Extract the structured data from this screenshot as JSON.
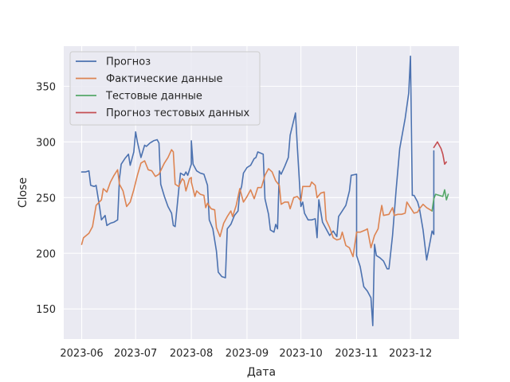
{
  "chart_data": {
    "type": "line",
    "title": "",
    "xlabel": "Дата",
    "ylabel": "Close",
    "xlim": [
      "2023-05-22",
      "2023-12-28"
    ],
    "ylim": [
      123,
      386
    ],
    "x_ticks": [
      "2023-06-01",
      "2023-07-01",
      "2023-08-01",
      "2023-09-01",
      "2023-10-01",
      "2023-11-01",
      "2023-12-01"
    ],
    "x_tick_labels": [
      "2023-06",
      "2023-07",
      "2023-08",
      "2023-09",
      "2023-10",
      "2023-11",
      "2023-12"
    ],
    "y_ticks": [
      150,
      200,
      250,
      300,
      350
    ],
    "y_tick_labels": [
      "150",
      "200",
      "250",
      "300",
      "350"
    ],
    "grid": true,
    "legend": "top-left",
    "colors": {
      "background": "#eaeaf2",
      "grid": "#ffffff",
      "forecast": "#4c72b0",
      "actual": "#dd8452",
      "test": "#55a868",
      "test_forecast": "#c44e52"
    },
    "series": [
      {
        "name": "Прогноз",
        "color": "#4c72b0",
        "points": [
          [
            "2023-06-01",
            273
          ],
          [
            "2023-06-03",
            273
          ],
          [
            "2023-06-05",
            274
          ],
          [
            "2023-06-06",
            261
          ],
          [
            "2023-06-08",
            260
          ],
          [
            "2023-06-09",
            261
          ],
          [
            "2023-06-11",
            241
          ],
          [
            "2023-06-12",
            230
          ],
          [
            "2023-06-14",
            234
          ],
          [
            "2023-06-15",
            225
          ],
          [
            "2023-06-17",
            227
          ],
          [
            "2023-06-19",
            228
          ],
          [
            "2023-06-21",
            230
          ],
          [
            "2023-06-22",
            267
          ],
          [
            "2023-06-23",
            280
          ],
          [
            "2023-06-25",
            285
          ],
          [
            "2023-06-27",
            289
          ],
          [
            "2023-06-28",
            279
          ],
          [
            "2023-06-30",
            291
          ],
          [
            "2023-07-01",
            309
          ],
          [
            "2023-07-02",
            300
          ],
          [
            "2023-07-04",
            286
          ],
          [
            "2023-07-06",
            297
          ],
          [
            "2023-07-07",
            296
          ],
          [
            "2023-07-09",
            299
          ],
          [
            "2023-07-11",
            301
          ],
          [
            "2023-07-13",
            302
          ],
          [
            "2023-07-14",
            299
          ],
          [
            "2023-07-15",
            262
          ],
          [
            "2023-07-17",
            251
          ],
          [
            "2023-07-19",
            242
          ],
          [
            "2023-07-21",
            236
          ],
          [
            "2023-07-22",
            225
          ],
          [
            "2023-07-23",
            224
          ],
          [
            "2023-07-25",
            257
          ],
          [
            "2023-07-26",
            272
          ],
          [
            "2023-07-28",
            270
          ],
          [
            "2023-07-29",
            273
          ],
          [
            "2023-07-30",
            270
          ],
          [
            "2023-08-01",
            280
          ],
          [
            "2023-08-01",
            301
          ],
          [
            "2023-08-02",
            280
          ],
          [
            "2023-08-04",
            274
          ],
          [
            "2023-08-06",
            272
          ],
          [
            "2023-08-08",
            271
          ],
          [
            "2023-08-10",
            261
          ],
          [
            "2023-08-11",
            230
          ],
          [
            "2023-08-13",
            222
          ],
          [
            "2023-08-15",
            202
          ],
          [
            "2023-08-16",
            183
          ],
          [
            "2023-08-18",
            179
          ],
          [
            "2023-08-20",
            178
          ],
          [
            "2023-08-21",
            222
          ],
          [
            "2023-08-23",
            226
          ],
          [
            "2023-08-25",
            234
          ],
          [
            "2023-08-27",
            238
          ],
          [
            "2023-08-28",
            255
          ],
          [
            "2023-08-29",
            260
          ],
          [
            "2023-08-30",
            272
          ],
          [
            "2023-09-01",
            277
          ],
          [
            "2023-09-03",
            279
          ],
          [
            "2023-09-05",
            285
          ],
          [
            "2023-09-06",
            286
          ],
          [
            "2023-09-07",
            291
          ],
          [
            "2023-09-10",
            289
          ],
          [
            "2023-09-11",
            249
          ],
          [
            "2023-09-13",
            235
          ],
          [
            "2023-09-14",
            221
          ],
          [
            "2023-09-16",
            219
          ],
          [
            "2023-09-17",
            226
          ],
          [
            "2023-09-18",
            222
          ],
          [
            "2023-09-19",
            274
          ],
          [
            "2023-09-20",
            271
          ],
          [
            "2023-09-22",
            278
          ],
          [
            "2023-09-24",
            286
          ],
          [
            "2023-09-25",
            306
          ],
          [
            "2023-09-28",
            326
          ],
          [
            "2023-09-29",
            296
          ],
          [
            "2023-10-01",
            242
          ],
          [
            "2023-10-02",
            246
          ],
          [
            "2023-10-03",
            236
          ],
          [
            "2023-10-05",
            230
          ],
          [
            "2023-10-07",
            230
          ],
          [
            "2023-10-09",
            231
          ],
          [
            "2023-10-10",
            214
          ],
          [
            "2023-10-11",
            248
          ],
          [
            "2023-10-13",
            228
          ],
          [
            "2023-10-15",
            222
          ],
          [
            "2023-10-17",
            216
          ],
          [
            "2023-10-19",
            220
          ],
          [
            "2023-10-21",
            215
          ],
          [
            "2023-10-22",
            233
          ],
          [
            "2023-10-24",
            238
          ],
          [
            "2023-10-26",
            243
          ],
          [
            "2023-10-28",
            256
          ],
          [
            "2023-10-29",
            270
          ],
          [
            "2023-11-01",
            271
          ],
          [
            "2023-11-01",
            198
          ],
          [
            "2023-11-03",
            188
          ],
          [
            "2023-11-05",
            170
          ],
          [
            "2023-11-07",
            166
          ],
          [
            "2023-11-09",
            160
          ],
          [
            "2023-11-10",
            135
          ],
          [
            "2023-11-11",
            208
          ],
          [
            "2023-11-12",
            198
          ],
          [
            "2023-11-14",
            196
          ],
          [
            "2023-11-16",
            193
          ],
          [
            "2023-11-18",
            186
          ],
          [
            "2023-11-19",
            186
          ],
          [
            "2023-11-21",
            216
          ],
          [
            "2023-11-23",
            257
          ],
          [
            "2023-11-25",
            294
          ],
          [
            "2023-11-28",
            321
          ],
          [
            "2023-11-30",
            344
          ],
          [
            "2023-12-01",
            377
          ],
          [
            "2023-12-02",
            252
          ],
          [
            "2023-12-03",
            252
          ],
          [
            "2023-12-05",
            246
          ],
          [
            "2023-12-06",
            240
          ],
          [
            "2023-12-08",
            221
          ],
          [
            "2023-12-10",
            194
          ],
          [
            "2023-12-12",
            211
          ],
          [
            "2023-12-13",
            220
          ],
          [
            "2023-12-14",
            217
          ],
          [
            "2023-12-14",
            292
          ]
        ]
      },
      {
        "name": "Фактические данные",
        "color": "#dd8452",
        "points": [
          [
            "2023-06-01",
            208
          ],
          [
            "2023-06-02",
            214
          ],
          [
            "2023-06-05",
            218
          ],
          [
            "2023-06-07",
            224
          ],
          [
            "2023-06-09",
            243
          ],
          [
            "2023-06-12",
            248
          ],
          [
            "2023-06-13",
            258
          ],
          [
            "2023-06-15",
            255
          ],
          [
            "2023-06-17",
            264
          ],
          [
            "2023-06-19",
            270
          ],
          [
            "2023-06-21",
            275
          ],
          [
            "2023-06-22",
            262
          ],
          [
            "2023-06-24",
            256
          ],
          [
            "2023-06-26",
            242
          ],
          [
            "2023-06-28",
            246
          ],
          [
            "2023-06-30",
            257
          ],
          [
            "2023-07-02",
            270
          ],
          [
            "2023-07-04",
            281
          ],
          [
            "2023-07-06",
            283
          ],
          [
            "2023-07-08",
            275
          ],
          [
            "2023-07-10",
            274
          ],
          [
            "2023-07-12",
            269
          ],
          [
            "2023-07-14",
            271
          ],
          [
            "2023-07-17",
            281
          ],
          [
            "2023-07-19",
            286
          ],
          [
            "2023-07-21",
            293
          ],
          [
            "2023-07-22",
            291
          ],
          [
            "2023-07-23",
            262
          ],
          [
            "2023-07-25",
            260
          ],
          [
            "2023-07-27",
            267
          ],
          [
            "2023-07-28",
            265
          ],
          [
            "2023-07-29",
            256
          ],
          [
            "2023-07-31",
            267
          ],
          [
            "2023-08-01",
            268
          ],
          [
            "2023-08-01",
            264
          ],
          [
            "2023-08-03",
            251
          ],
          [
            "2023-08-04",
            256
          ],
          [
            "2023-08-06",
            253
          ],
          [
            "2023-08-08",
            252
          ],
          [
            "2023-08-09",
            241
          ],
          [
            "2023-08-10",
            245
          ],
          [
            "2023-08-12",
            240
          ],
          [
            "2023-08-14",
            239
          ],
          [
            "2023-08-15",
            223
          ],
          [
            "2023-08-17",
            215
          ],
          [
            "2023-08-19",
            227
          ],
          [
            "2023-08-21",
            233
          ],
          [
            "2023-08-23",
            238
          ],
          [
            "2023-08-24",
            233
          ],
          [
            "2023-08-26",
            243
          ],
          [
            "2023-08-28",
            258
          ],
          [
            "2023-08-30",
            246
          ],
          [
            "2023-09-01",
            251
          ],
          [
            "2023-09-03",
            257
          ],
          [
            "2023-09-05",
            249
          ],
          [
            "2023-09-07",
            259
          ],
          [
            "2023-09-09",
            259
          ],
          [
            "2023-09-11",
            270
          ],
          [
            "2023-09-13",
            276
          ],
          [
            "2023-09-15",
            273
          ],
          [
            "2023-09-17",
            265
          ],
          [
            "2023-09-19",
            261
          ],
          [
            "2023-09-20",
            244
          ],
          [
            "2023-09-22",
            246
          ],
          [
            "2023-09-24",
            246
          ],
          [
            "2023-09-25",
            240
          ],
          [
            "2023-09-27",
            250
          ],
          [
            "2023-09-29",
            251
          ],
          [
            "2023-10-01",
            247
          ],
          [
            "2023-10-02",
            260
          ],
          [
            "2023-10-04",
            260
          ],
          [
            "2023-10-06",
            260
          ],
          [
            "2023-10-07",
            264
          ],
          [
            "2023-10-09",
            261
          ],
          [
            "2023-10-10",
            250
          ],
          [
            "2023-10-12",
            254
          ],
          [
            "2023-10-14",
            255
          ],
          [
            "2023-10-15",
            230
          ],
          [
            "2023-10-17",
            223
          ],
          [
            "2023-10-19",
            214
          ],
          [
            "2023-10-21",
            212
          ],
          [
            "2023-10-23",
            213
          ],
          [
            "2023-10-24",
            219
          ],
          [
            "2023-10-26",
            207
          ],
          [
            "2023-10-28",
            205
          ],
          [
            "2023-10-30",
            197
          ],
          [
            "2023-11-01",
            219
          ],
          [
            "2023-11-03",
            219
          ],
          [
            "2023-11-06",
            221
          ],
          [
            "2023-11-07",
            222
          ],
          [
            "2023-11-09",
            205
          ],
          [
            "2023-11-11",
            216
          ],
          [
            "2023-11-13",
            222
          ],
          [
            "2023-11-14",
            234
          ],
          [
            "2023-11-15",
            243
          ],
          [
            "2023-11-16",
            234
          ],
          [
            "2023-11-19",
            235
          ],
          [
            "2023-11-21",
            241
          ],
          [
            "2023-11-22",
            234
          ],
          [
            "2023-11-24",
            235
          ],
          [
            "2023-11-26",
            235
          ],
          [
            "2023-11-28",
            236
          ],
          [
            "2023-11-29",
            246
          ],
          [
            "2023-12-01",
            241
          ],
          [
            "2023-12-03",
            236
          ],
          [
            "2023-12-05",
            237
          ],
          [
            "2023-12-06",
            240
          ],
          [
            "2023-12-08",
            244
          ],
          [
            "2023-12-10",
            241
          ],
          [
            "2023-12-13",
            238
          ]
        ]
      },
      {
        "name": "Тестовые данные",
        "color": "#55a868",
        "points": [
          [
            "2023-12-13",
            238
          ],
          [
            "2023-12-14",
            249
          ],
          [
            "2023-12-15",
            253
          ],
          [
            "2023-12-17",
            252
          ],
          [
            "2023-12-19",
            251
          ],
          [
            "2023-12-20",
            257
          ],
          [
            "2023-12-21",
            248
          ],
          [
            "2023-12-22",
            253
          ]
        ]
      },
      {
        "name": "Прогноз тестовых данных",
        "color": "#c44e52",
        "points": [
          [
            "2023-12-14",
            295
          ],
          [
            "2023-12-16",
            300
          ],
          [
            "2023-12-18",
            294
          ],
          [
            "2023-12-19",
            289
          ],
          [
            "2023-12-20",
            280
          ],
          [
            "2023-12-21",
            282
          ]
        ]
      }
    ]
  }
}
